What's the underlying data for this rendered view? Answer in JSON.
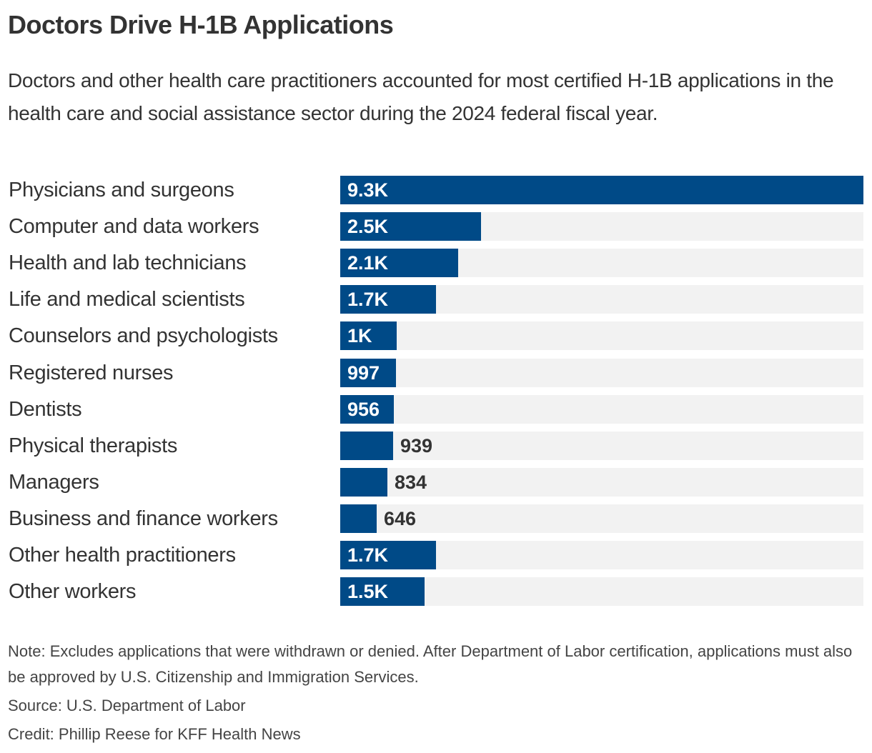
{
  "title": "Doctors Drive H-1B Applications",
  "subtitle": "Doctors and other health care practitioners accounted for most certified H-1B applications in the health care and social assistance sector during the 2024 federal fiscal year.",
  "note": "Note: Excludes applications that were withdrawn or denied. After Department of Labor certification, applications must also be approved by U.S. Citizenship and Immigration Services.",
  "source": "Source: U.S. Department of Labor",
  "credit": "Credit: Phillip Reese for KFF Health News",
  "colors": {
    "bar": "#004a87",
    "track": "#f2f2f2",
    "label_inside": "#ffffff",
    "label_outside": "#333333"
  },
  "chart_data": {
    "type": "bar",
    "orientation": "horizontal",
    "title": "Doctors Drive H-1B Applications",
    "xlim": [
      0,
      9300
    ],
    "grid": false,
    "categories": [
      "Physicians and surgeons",
      "Computer and data workers",
      "Health and lab technicians",
      "Life and medical scientists",
      "Counselors and psychologists",
      "Registered nurses",
      "Dentists",
      "Physical therapists",
      "Managers",
      "Business and finance workers",
      "Other health practitioners",
      "Other workers"
    ],
    "values": [
      9300,
      2500,
      2100,
      1700,
      1000,
      997,
      956,
      939,
      834,
      646,
      1700,
      1500
    ],
    "labels": [
      "9.3K",
      "2.5K",
      "2.1K",
      "1.7K",
      "1K",
      "997",
      "956",
      "939",
      "834",
      "646",
      "1.7K",
      "1.5K"
    ]
  }
}
